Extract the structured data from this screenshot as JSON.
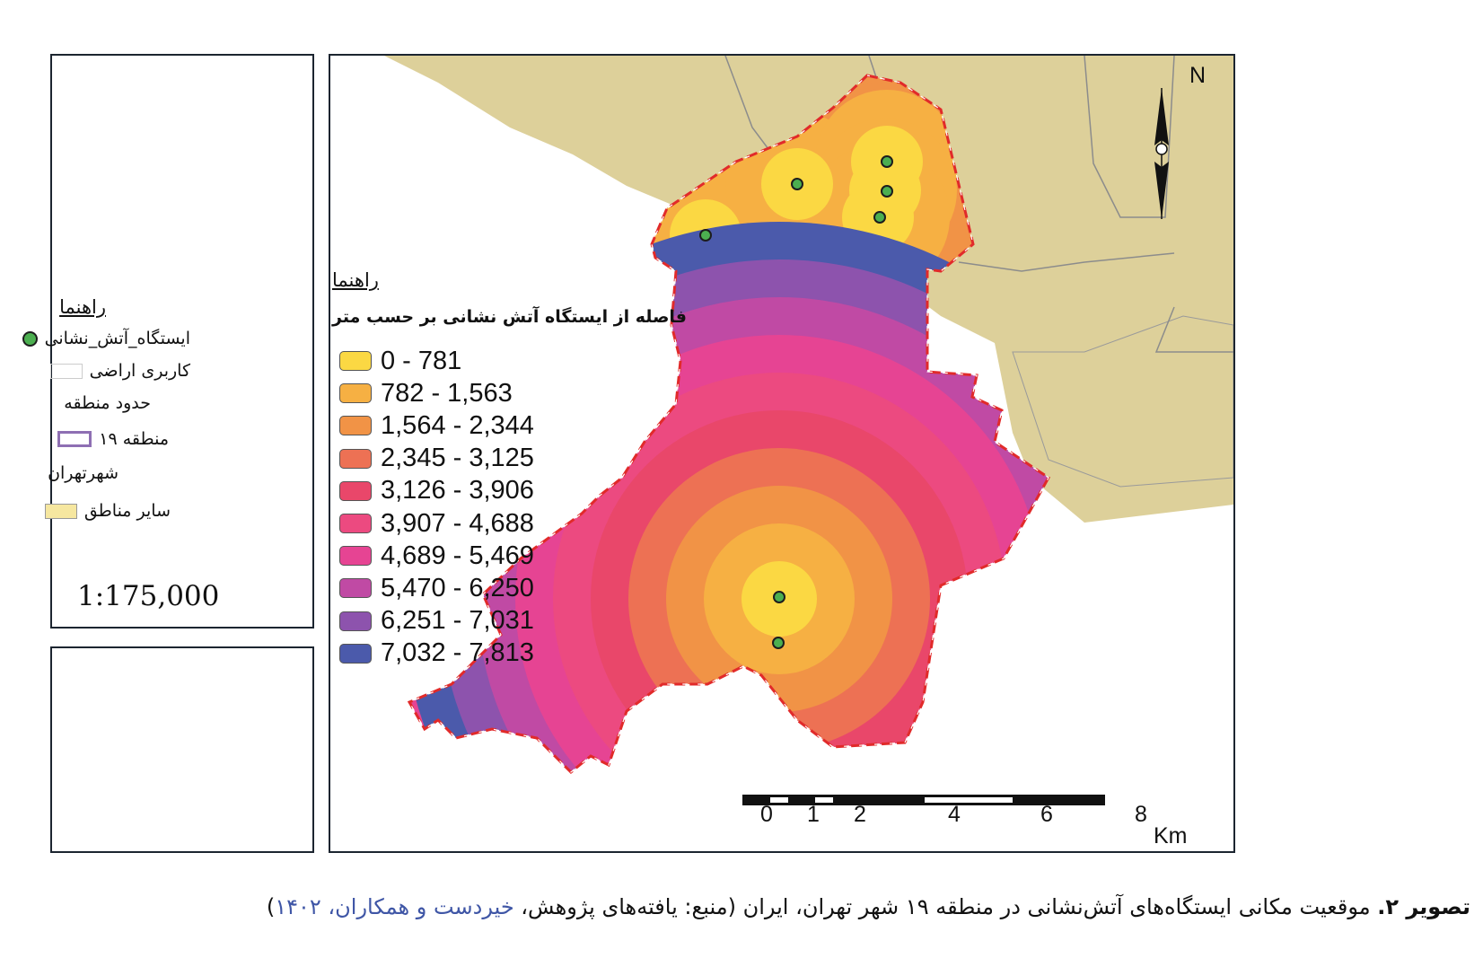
{
  "side_legend": {
    "title": "راهنما",
    "items": [
      {
        "label": "ایستگاه_آتش_نشانی",
        "symbol": "green-dot"
      },
      {
        "label": "کاربری اراضی",
        "symbol": "empty-box"
      }
    ],
    "boundary_heading": "حدود منطقه",
    "boundary_item": {
      "label": "منطقه ۱۹",
      "color": "#8e6fb3"
    },
    "city_heading": "شهرتهران",
    "city_item": {
      "label": "سایر مناطق",
      "color": "#f6e7a0"
    },
    "scale": "1:175,000"
  },
  "map_legend": {
    "title": "راهنما",
    "subtitle": "فاصله از ایستگاه آتش نشانی بر حسب متر",
    "classes": [
      {
        "label": "0 - 781",
        "color": "#fbd843"
      },
      {
        "label": "782 - 1,563",
        "color": "#f6b043"
      },
      {
        "label": "1,564 - 2,344",
        "color": "#f19346"
      },
      {
        "label": "2,345 - 3,125",
        "color": "#ed7154"
      },
      {
        "label": "3,126 - 3,906",
        "color": "#e9476a"
      },
      {
        "label": "3,907 - 4,688",
        "color": "#ec4a80"
      },
      {
        "label": "4,689 - 5,469",
        "color": "#e64493"
      },
      {
        "label": "5,470 - 6,250",
        "color": "#c04aa4"
      },
      {
        "label": "6,251 - 7,031",
        "color": "#8d53ad"
      },
      {
        "label": "7,032 - 7,813",
        "color": "#4b5aab"
      }
    ]
  },
  "north_label": "N",
  "scale_bar": {
    "ticks": [
      "0",
      "1",
      "2",
      "4",
      "6",
      "8"
    ],
    "unit": "Km"
  },
  "fire_stations_count": 7,
  "colors": {
    "land": "#ddd09a",
    "boundary": "#e12a2a"
  },
  "caption": {
    "figure": "تصویر ۲.",
    "text": " موقعیت مکانی ایستگاه‌های آتش‌نشانی در منطقه ۱۹ شهر تهران، ایران (منبع: یافته‌های پژوهش، ",
    "source": "خیردست و همکاران، ۱۴۰۲",
    "close": ")"
  }
}
